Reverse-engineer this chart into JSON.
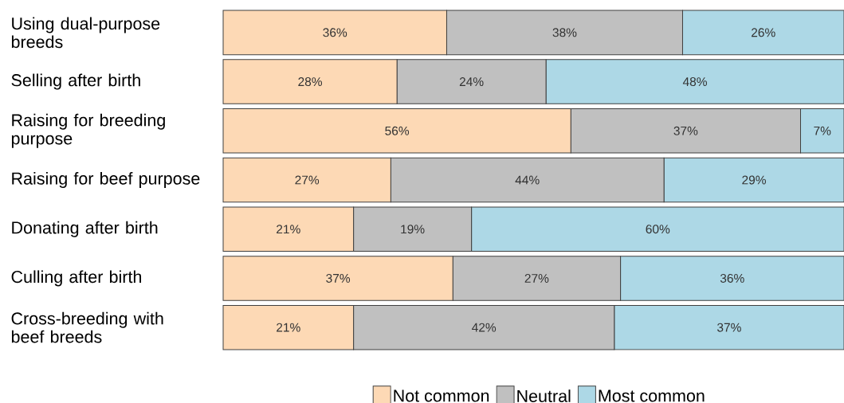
{
  "chart_data": {
    "type": "bar",
    "orientation": "horizontal",
    "stacked": true,
    "legend": "bottom",
    "categories": [
      "Using dual-purpose breeds",
      "Selling after birth",
      "Raising for breeding purpose",
      "Raising for beef purpose",
      "Donating after birth",
      "Culling after birth",
      "Cross-breeding with beef breeds"
    ],
    "series": [
      {
        "name": "Not common",
        "color": "#fdd9b5",
        "values": [
          36,
          28,
          56,
          27,
          21,
          37,
          21
        ],
        "value_labels": [
          "36%",
          "28%",
          "56%",
          "27%",
          "21%",
          "37%",
          "21%"
        ]
      },
      {
        "name": "Neutral",
        "color": "#c0c0c0",
        "values": [
          38,
          24,
          37,
          44,
          19,
          27,
          42
        ],
        "value_labels": [
          "38%",
          "24%",
          "37%",
          "44%",
          "19%",
          "27%",
          "42%"
        ]
      },
      {
        "name": "Most common",
        "color": "#add8e6",
        "values": [
          26,
          48,
          7,
          29,
          60,
          36,
          37
        ],
        "value_labels": [
          "26%",
          "48%",
          "7%",
          "29%",
          "60%",
          "36%",
          "37%"
        ]
      }
    ]
  }
}
